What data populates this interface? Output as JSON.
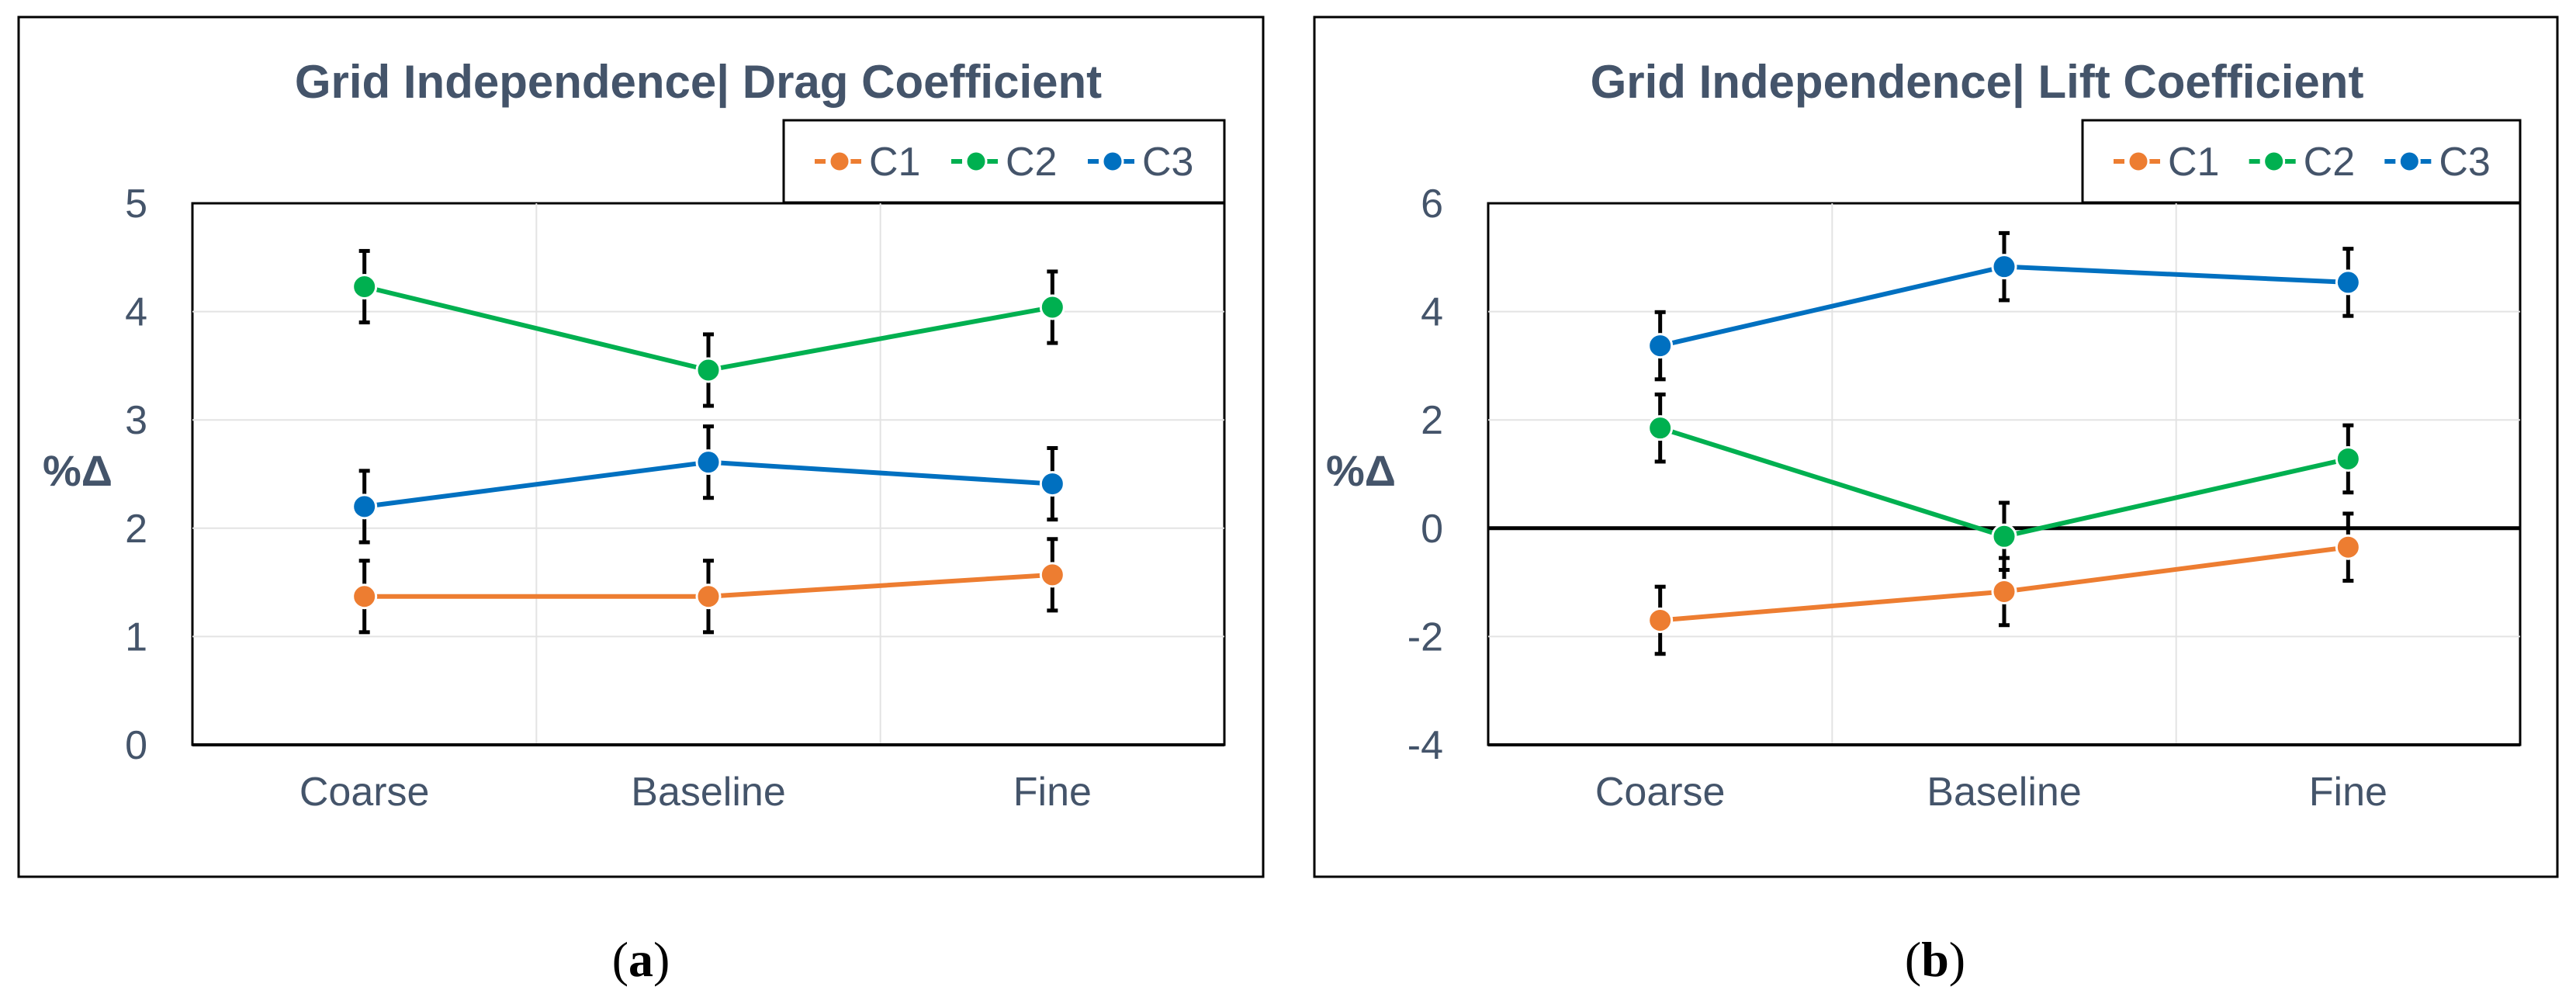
{
  "chart_data": [
    {
      "type": "line",
      "title": "Grid Independence| Drag Coefficient",
      "ylabel": "%Δ",
      "xlabel": "",
      "categories": [
        "Coarse",
        "Baseline",
        "Fine"
      ],
      "ylim": [
        0,
        5
      ],
      "yticks": [
        0,
        1,
        2,
        3,
        4,
        5
      ],
      "ytick_labels": [
        "0",
        "1",
        "2",
        "3",
        "4",
        "5"
      ],
      "error": 0.33,
      "zero_line": false,
      "legend_position": "top-right",
      "caption_letter": "a",
      "series": [
        {
          "name": "C1",
          "color": "#ed7d31",
          "values": [
            1.37,
            1.37,
            1.57
          ]
        },
        {
          "name": "C2",
          "color": "#00b050",
          "values": [
            4.23,
            3.46,
            4.04
          ]
        },
        {
          "name": "C3",
          "color": "#0070c0",
          "values": [
            2.2,
            2.61,
            2.41
          ]
        }
      ]
    },
    {
      "type": "line",
      "title": "Grid Independence| Lift Coefficient",
      "ylabel": "%Δ",
      "xlabel": "",
      "categories": [
        "Coarse",
        "Baseline",
        "Fine"
      ],
      "ylim": [
        -4,
        6
      ],
      "yticks": [
        -4,
        -2,
        0,
        2,
        4,
        6
      ],
      "ytick_labels": [
        "-4",
        "-2",
        "0",
        "2",
        "4",
        "6"
      ],
      "error": 0.62,
      "zero_line": true,
      "legend_position": "top-right",
      "caption_letter": "b",
      "series": [
        {
          "name": "C1",
          "color": "#ed7d31",
          "values": [
            -1.7,
            -1.17,
            -0.35
          ]
        },
        {
          "name": "C2",
          "color": "#00b050",
          "values": [
            1.85,
            -0.15,
            1.28
          ]
        },
        {
          "name": "C3",
          "color": "#0070c0",
          "values": [
            3.37,
            4.83,
            4.54
          ]
        }
      ]
    }
  ]
}
